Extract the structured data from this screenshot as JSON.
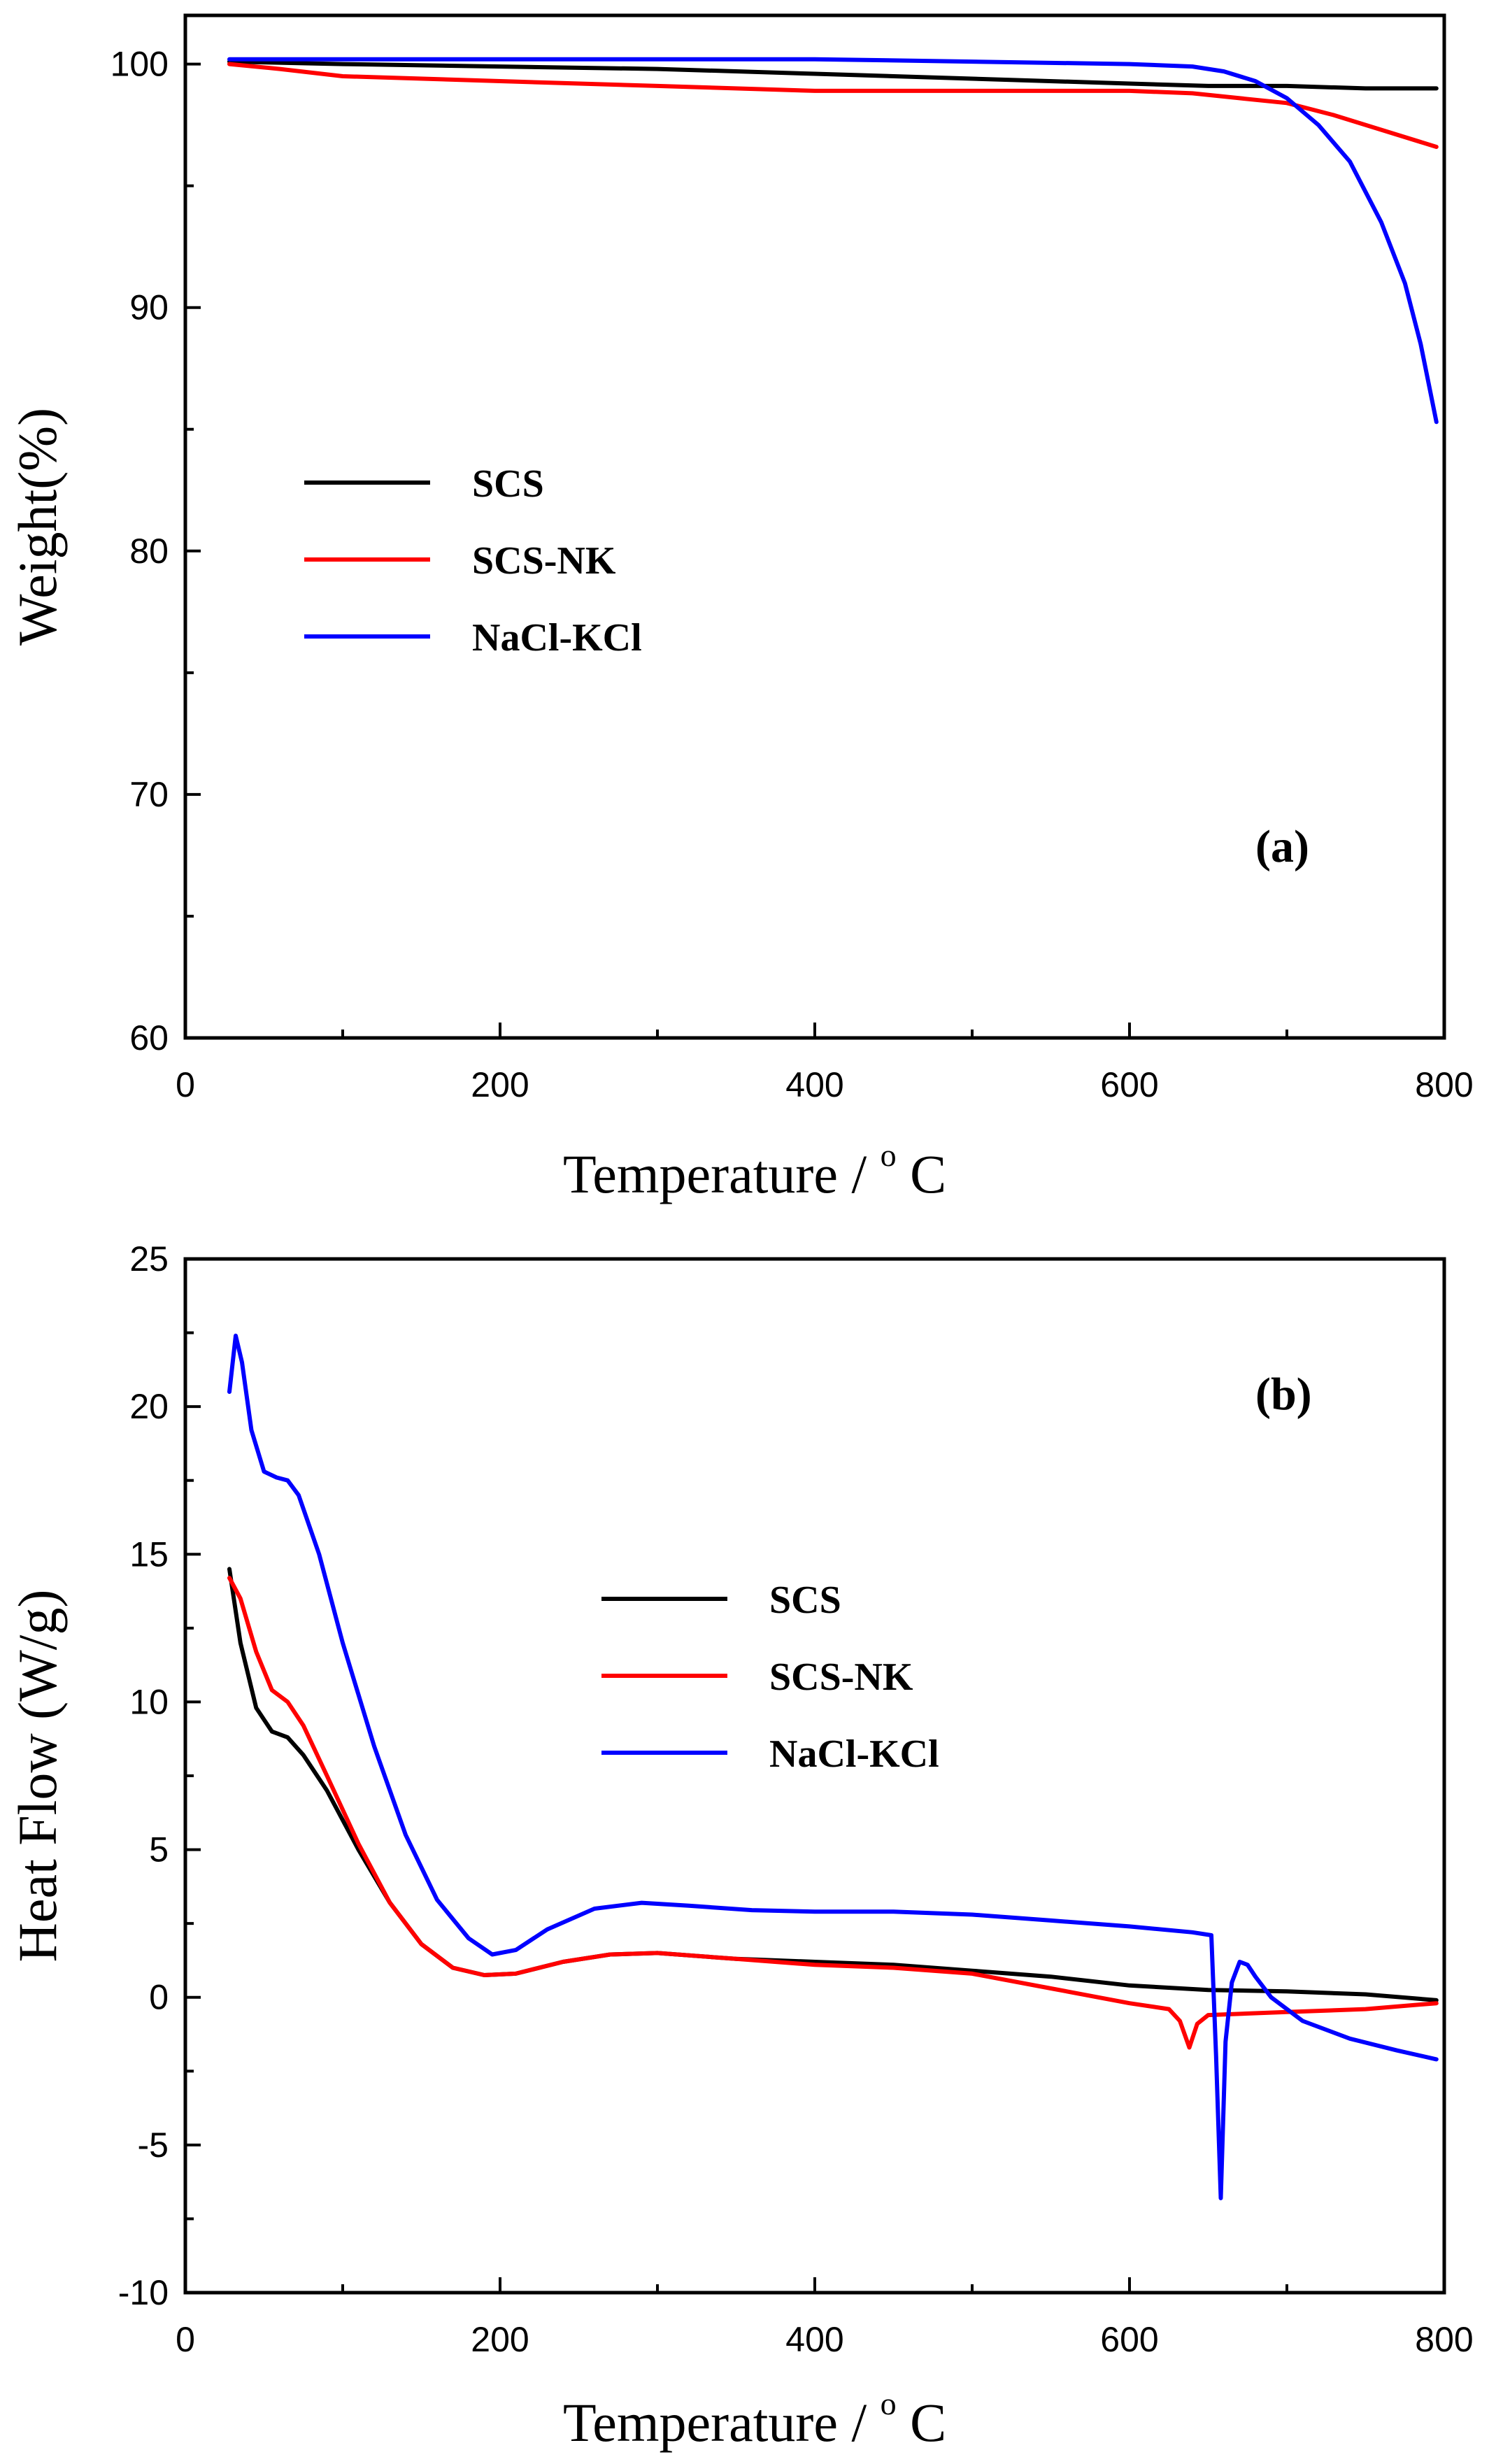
{
  "chart_data": [
    {
      "type": "line",
      "panel_label": "(a)",
      "xlabel": "Temperature / °C",
      "xlabel_main": "Temperature / ",
      "xlabel_sup": "o",
      "xlabel_unit": "C",
      "ylabel": "Weight(%)",
      "xlim": [
        0,
        800
      ],
      "ylim": [
        60,
        102
      ],
      "xticks": [
        0,
        200,
        400,
        600,
        800
      ],
      "yticks": [
        60,
        70,
        80,
        90,
        100
      ],
      "legend_placement": "center-left",
      "series": [
        {
          "name": "SCS",
          "color": "#000000",
          "x": [
            28,
            100,
            200,
            300,
            400,
            500,
            600,
            650,
            700,
            750,
            795
          ],
          "y": [
            100.1,
            100.0,
            99.9,
            99.8,
            99.6,
            99.4,
            99.2,
            99.1,
            99.1,
            99.0,
            99.0
          ]
        },
        {
          "name": "SCS-NK",
          "color": "#ff0000",
          "x": [
            28,
            60,
            100,
            200,
            300,
            400,
            500,
            600,
            640,
            670,
            700,
            730,
            760,
            795
          ],
          "y": [
            100.0,
            99.8,
            99.5,
            99.3,
            99.1,
            98.9,
            98.9,
            98.9,
            98.8,
            98.6,
            98.4,
            97.9,
            97.3,
            96.6
          ]
        },
        {
          "name": "NaCl-KCl",
          "color": "#0000ff",
          "x": [
            28,
            100,
            200,
            300,
            400,
            500,
            600,
            640,
            660,
            680,
            700,
            720,
            740,
            760,
            775,
            785,
            795
          ],
          "y": [
            100.2,
            100.2,
            100.2,
            100.2,
            100.2,
            100.1,
            100.0,
            99.9,
            99.7,
            99.3,
            98.6,
            97.5,
            96.0,
            93.5,
            91.0,
            88.5,
            85.3
          ]
        }
      ]
    },
    {
      "type": "line",
      "panel_label": "(b)",
      "xlabel": "Temperature / °C",
      "xlabel_main": "Temperature / ",
      "xlabel_sup": "o",
      "xlabel_unit": "C",
      "ylabel": "Heat Flow (W/g)",
      "xlim": [
        0,
        800
      ],
      "ylim": [
        -10,
        25
      ],
      "xticks": [
        0,
        200,
        400,
        600,
        800
      ],
      "yticks": [
        -10,
        -5,
        0,
        5,
        10,
        15,
        20,
        25
      ],
      "legend_placement": "center-right",
      "series": [
        {
          "name": "SCS",
          "color": "#000000",
          "x": [
            28,
            35,
            45,
            55,
            65,
            75,
            90,
            110,
            130,
            150,
            170,
            190,
            210,
            240,
            270,
            300,
            350,
            400,
            450,
            500,
            550,
            600,
            650,
            700,
            750,
            795
          ],
          "y": [
            14.5,
            12.0,
            9.8,
            9.0,
            8.8,
            8.2,
            7.0,
            5.0,
            3.2,
            1.8,
            1.0,
            0.75,
            0.8,
            1.2,
            1.45,
            1.5,
            1.3,
            1.2,
            1.1,
            0.9,
            0.7,
            0.4,
            0.25,
            0.2,
            0.1,
            -0.1
          ]
        },
        {
          "name": "SCS-NK",
          "color": "#ff0000",
          "x": [
            28,
            35,
            45,
            55,
            65,
            75,
            90,
            110,
            130,
            150,
            170,
            190,
            210,
            240,
            270,
            300,
            350,
            400,
            450,
            500,
            550,
            600,
            625,
            632,
            638,
            643,
            650,
            700,
            750,
            795
          ],
          "y": [
            14.2,
            13.5,
            11.7,
            10.4,
            10.0,
            9.2,
            7.5,
            5.2,
            3.2,
            1.8,
            1.0,
            0.75,
            0.8,
            1.2,
            1.45,
            1.5,
            1.3,
            1.1,
            1.0,
            0.8,
            0.3,
            -0.2,
            -0.4,
            -0.8,
            -1.7,
            -0.9,
            -0.6,
            -0.5,
            -0.4,
            -0.2
          ]
        },
        {
          "name": "NaCl-KCl",
          "color": "#0000ff",
          "x": [
            28,
            32,
            36,
            42,
            50,
            58,
            65,
            72,
            85,
            100,
            120,
            140,
            160,
            180,
            195,
            210,
            230,
            260,
            290,
            320,
            360,
            400,
            450,
            500,
            550,
            600,
            640,
            652,
            655,
            658,
            661,
            665,
            670,
            675,
            680,
            690,
            710,
            740,
            770,
            795
          ],
          "y": [
            20.5,
            22.4,
            21.5,
            19.2,
            17.8,
            17.6,
            17.5,
            17.0,
            15.0,
            12.0,
            8.5,
            5.5,
            3.3,
            2.0,
            1.45,
            1.6,
            2.3,
            3.0,
            3.2,
            3.1,
            2.95,
            2.9,
            2.9,
            2.8,
            2.6,
            2.4,
            2.2,
            2.1,
            -2.0,
            -6.8,
            -1.5,
            0.5,
            1.2,
            1.1,
            0.7,
            0.0,
            -0.8,
            -1.4,
            -1.8,
            -2.1
          ]
        }
      ]
    }
  ]
}
